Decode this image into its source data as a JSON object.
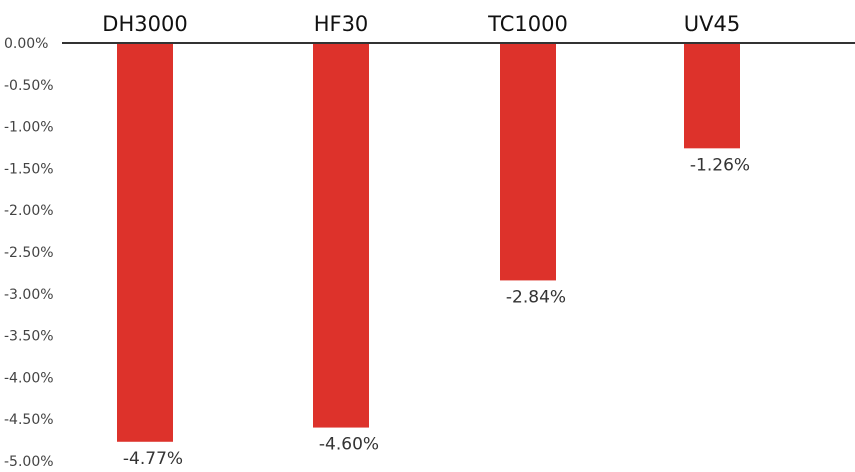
{
  "chart_data": {
    "type": "bar",
    "categories": [
      "DH3000",
      "HF30",
      "TC1000",
      "UV45"
    ],
    "values": [
      -4.77,
      -4.6,
      -2.84,
      -1.26
    ],
    "data_labels": [
      "-4.77%",
      "-4.60%",
      "-2.84%",
      "-1.26%"
    ],
    "y_ticks": [
      0,
      -0.5,
      -1.0,
      -1.5,
      -2.0,
      -2.5,
      -3.0,
      -3.5,
      -4.0,
      -4.5,
      -5.0
    ],
    "y_tick_labels": [
      "0.00%",
      "-0.50%",
      "-1.00%",
      "-1.50%",
      "-2.00%",
      "-2.50%",
      "-3.00%",
      "-3.50%",
      "-4.00%",
      "-4.50%",
      "-5.00%"
    ],
    "ylim": [
      -5.0,
      0
    ],
    "category_axis_position": "top",
    "grid": false,
    "bar_color": "#dd322b",
    "axis_color": "#333333"
  }
}
